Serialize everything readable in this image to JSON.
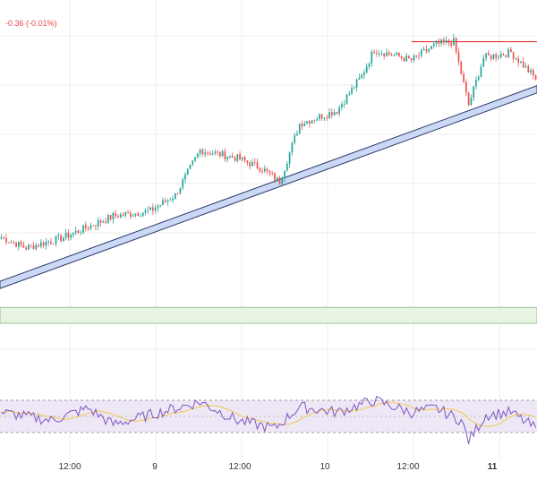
{
  "header": {
    "change_text": "-0.36 (-0.01%)"
  },
  "colors": {
    "up": "#26a69a",
    "down": "#ef5350",
    "wick": "#444444",
    "trendline_fill": "#cdd8f6",
    "trendline_edge": "#2b3f6b",
    "resistance": "#e53935",
    "zone_fill": "#e8f5e3",
    "zone_edge": "#9cbf94",
    "rsi_line": "#7e57c2",
    "rsi_ma": "#f2c94c",
    "rsi_band": "#ede7f6",
    "grid": "#eeeeee"
  },
  "chart_data": [
    {
      "type": "candlestick",
      "title": "",
      "x_ticks": [
        {
          "label": "12:00",
          "bold": false
        },
        {
          "label": "9",
          "bold": false
        },
        {
          "label": "12:00",
          "bold": false
        },
        {
          "label": "10",
          "bold": false
        },
        {
          "label": "12:00",
          "bold": false
        },
        {
          "label": "11",
          "bold": true
        }
      ],
      "anchors": [
        {
          "i": 0,
          "p": 12.0
        },
        {
          "i": 10,
          "p": 8.0
        },
        {
          "i": 25,
          "p": 12.0
        },
        {
          "i": 45,
          "p": 20.0
        },
        {
          "i": 60,
          "p": 22.0
        },
        {
          "i": 70,
          "p": 28.0
        },
        {
          "i": 80,
          "p": 45.0
        },
        {
          "i": 95,
          "p": 42.0
        },
        {
          "i": 105,
          "p": 38.0
        },
        {
          "i": 112,
          "p": 33.0
        },
        {
          "i": 120,
          "p": 55.0
        },
        {
          "i": 135,
          "p": 60.0
        },
        {
          "i": 145,
          "p": 73.0
        },
        {
          "i": 150,
          "p": 83.0
        },
        {
          "i": 165,
          "p": 79.0
        },
        {
          "i": 175,
          "p": 85.0
        },
        {
          "i": 182,
          "p": 86.0
        },
        {
          "i": 188,
          "p": 62.0
        },
        {
          "i": 194,
          "p": 80.0
        },
        {
          "i": 205,
          "p": 82.0
        },
        {
          "i": 215,
          "p": 72.0
        }
      ],
      "candle_count": 216,
      "y_range": [
        -10,
        95
      ],
      "trendline": {
        "start": {
          "i": 0,
          "p": -6
        },
        "end": {
          "i": 215,
          "p": 68
        }
      },
      "resistance_level": 86,
      "resistance_from_index": 165,
      "support_zone": [
        -20.5,
        -14.5
      ]
    },
    {
      "type": "line",
      "title": "",
      "series": [
        {
          "anchors": [
            {
              "i": 0,
              "v": 55
            },
            {
              "i": 20,
              "v": 45
            },
            {
              "i": 35,
              "v": 60
            },
            {
              "i": 45,
              "v": 40
            },
            {
              "i": 60,
              "v": 52
            },
            {
              "i": 80,
              "v": 68
            },
            {
              "i": 95,
              "v": 45
            },
            {
              "i": 110,
              "v": 35
            },
            {
              "i": 120,
              "v": 62
            },
            {
              "i": 135,
              "v": 55
            },
            {
              "i": 145,
              "v": 65
            },
            {
              "i": 150,
              "v": 70
            },
            {
              "i": 165,
              "v": 55
            },
            {
              "i": 175,
              "v": 60
            },
            {
              "i": 185,
              "v": 45
            },
            {
              "i": 188,
              "v": 20
            },
            {
              "i": 195,
              "v": 52
            },
            {
              "i": 205,
              "v": 55
            },
            {
              "i": 215,
              "v": 35
            }
          ]
        },
        {
          "smoothing": 14
        }
      ],
      "y_range": [
        0,
        100
      ],
      "band": [
        30,
        70
      ],
      "midline": 50
    }
  ]
}
